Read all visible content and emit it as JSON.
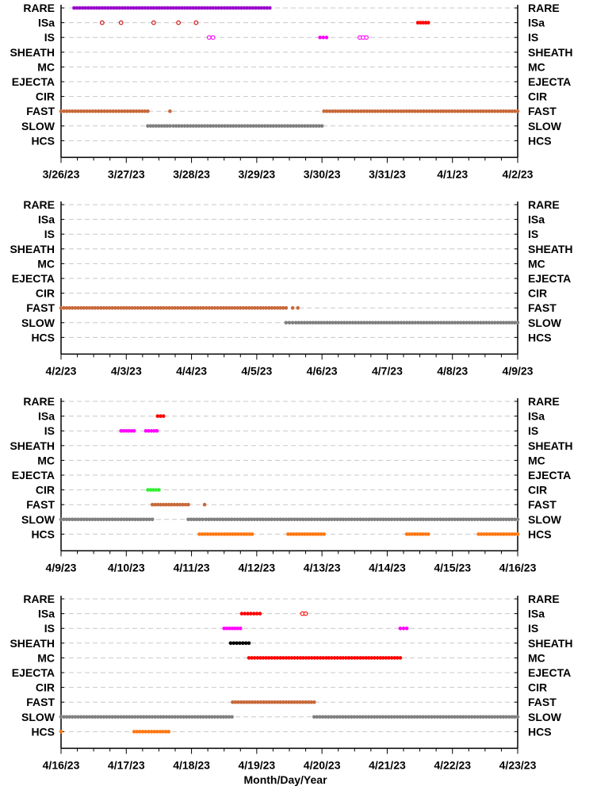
{
  "figure": {
    "xlabel": "Month/Day/Year"
  },
  "chart_data": [
    {
      "type": "scatter",
      "categories": [
        "RARE",
        "ISa",
        "IS",
        "SHEATH",
        "MC",
        "EJECTA",
        "CIR",
        "FAST",
        "SLOW",
        "HCS"
      ],
      "x_ticks": [
        "3/26/23",
        "3/27/23",
        "3/28/23",
        "3/29/23",
        "3/30/23",
        "3/31/23",
        "4/1/23",
        "4/2/23"
      ],
      "xlim": [
        0,
        7
      ],
      "series": [
        {
          "category": "RARE",
          "color": "#9900cc",
          "style": "filled",
          "ranges": [
            [
              0.2,
              3.2
            ]
          ]
        },
        {
          "category": "ISa",
          "color": "#cc0000",
          "style": "open",
          "points": [
            0.63,
            0.92,
            1.42,
            1.8,
            2.07
          ]
        },
        {
          "category": "ISa",
          "color": "#ff0000",
          "style": "filled",
          "ranges": [
            [
              5.47,
              5.63
            ]
          ]
        },
        {
          "category": "IS",
          "color": "#ff00ff",
          "style": "open",
          "points": [
            2.27,
            2.33,
            4.58,
            4.63,
            4.68
          ]
        },
        {
          "category": "IS",
          "color": "#ff00ff",
          "style": "filled",
          "ranges": [
            [
              3.97,
              4.07
            ]
          ]
        },
        {
          "category": "FAST",
          "color": "#c8693a",
          "style": "filled",
          "ranges": [
            [
              0,
              1.33
            ],
            [
              4.03,
              7
            ]
          ],
          "points": [
            1.67
          ]
        },
        {
          "category": "SLOW",
          "color": "#808080",
          "style": "filled",
          "ranges": [
            [
              1.33,
              1.67
            ],
            [
              1.72,
              4.0
            ]
          ]
        }
      ]
    },
    {
      "type": "scatter",
      "categories": [
        "RARE",
        "ISa",
        "IS",
        "SHEATH",
        "MC",
        "EJECTA",
        "CIR",
        "FAST",
        "SLOW",
        "HCS"
      ],
      "x_ticks": [
        "4/2/23",
        "4/3/23",
        "4/4/23",
        "4/5/23",
        "4/6/23",
        "4/7/23",
        "4/8/23",
        "4/9/23"
      ],
      "xlim": [
        0,
        7
      ],
      "series": [
        {
          "category": "FAST",
          "color": "#c8693a",
          "style": "filled",
          "ranges": [
            [
              0,
              3.45
            ]
          ],
          "points": [
            3.55,
            3.63
          ]
        },
        {
          "category": "SLOW",
          "color": "#808080",
          "style": "filled",
          "ranges": [
            [
              3.45,
              3.55
            ],
            [
              3.6,
              7
            ]
          ]
        }
      ]
    },
    {
      "type": "scatter",
      "categories": [
        "RARE",
        "ISa",
        "IS",
        "SHEATH",
        "MC",
        "EJECTA",
        "CIR",
        "FAST",
        "SLOW",
        "HCS"
      ],
      "x_ticks": [
        "4/9/23",
        "4/10/23",
        "4/11/23",
        "4/12/23",
        "4/13/23",
        "4/14/23",
        "4/15/23",
        "4/16/23"
      ],
      "xlim": [
        0,
        7
      ],
      "series": [
        {
          "category": "ISa",
          "color": "#ff0000",
          "style": "filled",
          "ranges": [
            [
              1.48,
              1.57
            ]
          ]
        },
        {
          "category": "IS",
          "color": "#ff00ff",
          "style": "filled",
          "ranges": [
            [
              0.92,
              1.12
            ],
            [
              1.3,
              1.47
            ]
          ]
        },
        {
          "category": "CIR",
          "color": "#33ee33",
          "style": "filled",
          "ranges": [
            [
              1.33,
              1.5
            ]
          ]
        },
        {
          "category": "FAST",
          "color": "#c8693a",
          "style": "filled",
          "ranges": [
            [
              1.4,
              1.95
            ]
          ],
          "points": [
            2.2
          ]
        },
        {
          "category": "SLOW",
          "color": "#808080",
          "style": "filled",
          "ranges": [
            [
              0,
              1.4
            ],
            [
              1.95,
              2.17
            ],
            [
              2.22,
              7
            ]
          ]
        },
        {
          "category": "HCS",
          "color": "#ff7711",
          "style": "filled",
          "ranges": [
            [
              2.12,
              2.93
            ],
            [
              3.48,
              4.03
            ],
            [
              5.3,
              5.63
            ],
            [
              6.4,
              7
            ]
          ]
        }
      ]
    },
    {
      "type": "scatter",
      "categories": [
        "RARE",
        "ISa",
        "IS",
        "SHEATH",
        "MC",
        "EJECTA",
        "CIR",
        "FAST",
        "SLOW",
        "HCS"
      ],
      "x_ticks": [
        "4/16/23",
        "4/17/23",
        "4/18/23",
        "4/19/23",
        "4/20/23",
        "4/21/23",
        "4/22/23",
        "4/23/23"
      ],
      "xlim": [
        0,
        7
      ],
      "series": [
        {
          "category": "ISa",
          "color": "#ff0000",
          "style": "filled",
          "ranges": [
            [
              2.77,
              3.05
            ]
          ]
        },
        {
          "category": "ISa",
          "color": "#ff0000",
          "style": "open",
          "points": [
            3.7,
            3.75
          ]
        },
        {
          "category": "IS",
          "color": "#ff00ff",
          "style": "filled",
          "ranges": [
            [
              2.5,
              2.75
            ],
            [
              5.2,
              5.3
            ]
          ]
        },
        {
          "category": "SHEATH",
          "color": "#000000",
          "style": "filled",
          "ranges": [
            [
              2.6,
              2.88
            ]
          ]
        },
        {
          "category": "MC",
          "color": "#ff0000",
          "style": "filled",
          "ranges": [
            [
              2.88,
              5.2
            ]
          ]
        },
        {
          "category": "FAST",
          "color": "#c8693a",
          "style": "filled",
          "ranges": [
            [
              2.63,
              3.88
            ]
          ]
        },
        {
          "category": "SLOW",
          "color": "#808080",
          "style": "filled",
          "ranges": [
            [
              0,
              2.62
            ],
            [
              3.88,
              7
            ]
          ]
        },
        {
          "category": "HCS",
          "color": "#ff7711",
          "style": "filled",
          "ranges": [
            [
              1.12,
              1.65
            ]
          ],
          "points": [
            0
          ]
        }
      ]
    }
  ]
}
